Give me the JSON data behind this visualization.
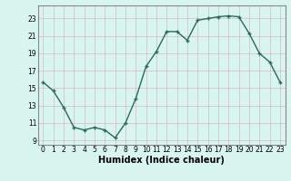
{
  "x": [
    0,
    1,
    2,
    3,
    4,
    5,
    6,
    7,
    8,
    9,
    10,
    11,
    12,
    13,
    14,
    15,
    16,
    17,
    18,
    19,
    20,
    21,
    22,
    23
  ],
  "y": [
    15.7,
    14.7,
    12.8,
    10.5,
    10.2,
    10.5,
    10.2,
    9.3,
    11.0,
    13.8,
    17.5,
    19.2,
    21.5,
    21.5,
    20.5,
    22.8,
    23.0,
    23.2,
    23.3,
    23.2,
    21.3,
    19.0,
    18.0,
    15.7
  ],
  "line_color": "#2a6b5a",
  "marker": "+",
  "markersize": 3,
  "linewidth": 1.0,
  "markeredgewidth": 1.0,
  "xlabel": "Humidex (Indice chaleur)",
  "xlabel_fontsize": 7,
  "xlim": [
    -0.5,
    23.5
  ],
  "ylim": [
    8.5,
    24.5
  ],
  "yticks": [
    9,
    11,
    13,
    15,
    17,
    19,
    21,
    23
  ],
  "xticks": [
    0,
    1,
    2,
    3,
    4,
    5,
    6,
    7,
    8,
    9,
    10,
    11,
    12,
    13,
    14,
    15,
    16,
    17,
    18,
    19,
    20,
    21,
    22,
    23
  ],
  "bg_color": "#d8f5f0",
  "grid_color": "#c8e8e0",
  "tick_fontsize": 5.5,
  "spine_color": "#888888"
}
